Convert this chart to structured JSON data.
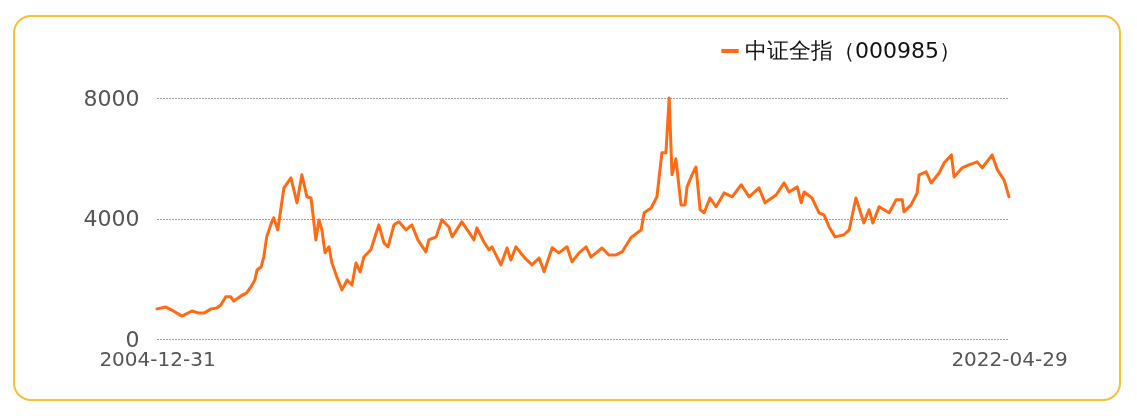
{
  "chart_data": {
    "type": "line",
    "legend": "top right",
    "grid": "y",
    "ylim": [
      0,
      8000
    ],
    "yticks": [
      0,
      4000,
      8000
    ],
    "xlim": [
      "2004-12-31",
      "2022-04-29"
    ],
    "xticks": [
      "2004-12-31",
      "2022-04-29"
    ],
    "series": [
      {
        "name": "中证全指（000985）",
        "color": "#ff6a13",
        "x": [
          "2004-12-31",
          "2005-03-07",
          "2005-04-20",
          "2005-07-04",
          "2005-09-17",
          "2005-11-08",
          "2005-12-15",
          "2006-02-06",
          "2006-03-20",
          "2006-04-19",
          "2006-05-26",
          "2006-07-02",
          "2006-07-24",
          "2006-09-16",
          "2006-10-28",
          "2006-11-28",
          "2006-12-28",
          "2007-01-13",
          "2007-02-12",
          "2007-03-04",
          "2007-03-26",
          "2007-05-03",
          "2007-05-17",
          "2007-06-16",
          "2007-07-08",
          "2007-08-01",
          "2007-09-22",
          "2007-11-06",
          "2007-12-12",
          "2008-01-19",
          "2008-02-18",
          "2008-03-25",
          "2008-04-17",
          "2008-05-09",
          "2008-06-01",
          "2008-06-30",
          "2008-07-22",
          "2008-08-28",
          "2008-10-05",
          "2008-11-12",
          "2008-12-18",
          "2009-01-17",
          "2009-02-17",
          "2009-03-16",
          "2009-05-07",
          "2009-07-06",
          "2009-08-13",
          "2009-09-12",
          "2009-10-26",
          "2009-12-02",
          "2010-01-24",
          "2010-03-08",
          "2010-04-22",
          "2010-06-20",
          "2010-07-12",
          "2010-09-04",
          "2010-10-17",
          "2010-12-08",
          "2011-01-01",
          "2011-03-14",
          "2011-05-05",
          "2011-06-12",
          "2011-07-04",
          "2011-08-25",
          "2011-10-02",
          "2011-10-24",
          "2011-12-29",
          "2012-02-13",
          "2012-03-12",
          "2012-04-19",
          "2012-06-18",
          "2012-08-16",
          "2012-10-08",
          "2012-11-14",
          "2013-01-13",
          "2013-03-04",
          "2013-05-03",
          "2013-06-09",
          "2013-08-01",
          "2013-09-22",
          "2013-10-28",
          "2014-01-19",
          "2014-03-10",
          "2014-05-02",
          "2014-06-16",
          "2014-08-21",
          "2014-10-05",
          "2014-11-05",
          "2014-11-27",
          "2015-01-18",
          "2015-03-02",
          "2015-04-08",
          "2015-05-08",
          "2015-06-01",
          "2015-06-22",
          "2015-07-21",
          "2015-08-28",
          "2015-09-27",
          "2015-10-12",
          "2015-11-18",
          "2015-12-17",
          "2016-01-17",
          "2016-02-16",
          "2016-03-30",
          "2016-05-14",
          "2016-07-13",
          "2016-09-11",
          "2016-11-17",
          "2017-01-15",
          "2017-03-29",
          "2017-05-13",
          "2017-08-03",
          "2017-10-02",
          "2017-11-08",
          "2018-01-07",
          "2018-02-06",
          "2018-02-28",
          "2018-04-27",
          "2018-06-18",
          "2018-07-25",
          "2018-09-01",
          "2018-10-15",
          "2018-12-21",
          "2019-01-28",
          "2019-03-19",
          "2019-05-17",
          "2019-06-24",
          "2019-07-23",
          "2019-09-07",
          "2019-11-21",
          "2020-01-12",
          "2020-02-26",
          "2020-03-10",
          "2020-05-02",
          "2020-06-16",
          "2020-06-30",
          "2020-08-21",
          "2020-09-28",
          "2020-11-27",
          "2021-01-03",
          "2021-02-25",
          "2021-03-17",
          "2021-05-15",
          "2021-07-06",
          "2021-09-05",
          "2021-10-12",
          "2021-12-25",
          "2022-02-01",
          "2022-03-23",
          "2022-04-29"
        ],
        "values": [
          1000,
          1060,
          960,
          760,
          930,
          860,
          860,
          1000,
          1030,
          1130,
          1400,
          1400,
          1260,
          1430,
          1530,
          1730,
          1960,
          2290,
          2390,
          2720,
          3390,
          3890,
          4020,
          3620,
          4290,
          5020,
          5350,
          4520,
          5450,
          4720,
          4680,
          3290,
          3950,
          3620,
          2860,
          3060,
          2530,
          2060,
          1630,
          1960,
          1790,
          2520,
          2230,
          2720,
          2960,
          3790,
          3190,
          3060,
          3790,
          3890,
          3620,
          3790,
          3290,
          2890,
          3290,
          3390,
          3960,
          3720,
          3390,
          3890,
          3550,
          3290,
          3690,
          3220,
          2960,
          3060,
          2460,
          3020,
          2620,
          3060,
          2720,
          2460,
          2690,
          2230,
          3030,
          2860,
          3060,
          2560,
          2860,
          3060,
          2720,
          3020,
          2790,
          2790,
          2890,
          3360,
          3520,
          3620,
          4190,
          4350,
          4720,
          6180,
          6180,
          8000,
          5450,
          5980,
          4450,
          4450,
          5050,
          5450,
          5710,
          4290,
          4190,
          4680,
          4390,
          4850,
          4720,
          5120,
          4720,
          5020,
          4520,
          4780,
          5180,
          4880,
          5050,
          4520,
          4880,
          4680,
          4190,
          4120,
          3720,
          3390,
          3460,
          3620,
          4680,
          3850,
          4290,
          3850,
          4390,
          4190,
          4620,
          4620,
          4220,
          4450,
          4850,
          5450,
          5550,
          5180,
          5520,
          5850,
          6110,
          5380,
          5680,
          5780,
          5880,
          5680,
          6110,
          5620,
          5280,
          4720
        ]
      }
    ]
  }
}
